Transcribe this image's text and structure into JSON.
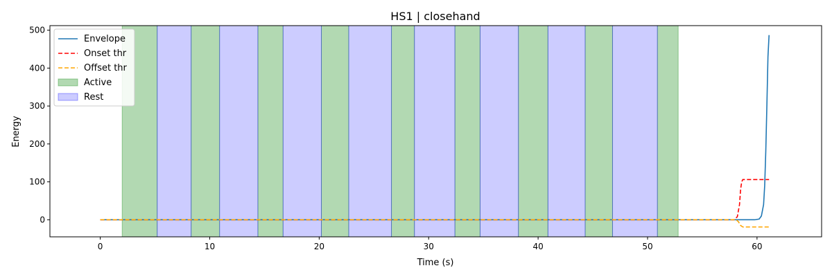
{
  "chart_data": {
    "type": "line",
    "title": "HS1 | closehand",
    "xlabel": "Time (s)",
    "ylabel": "Energy",
    "xlim": [
      -4.6,
      65.9
    ],
    "ylim": [
      -45,
      512
    ],
    "xticks": [
      0,
      10,
      20,
      30,
      40,
      50,
      60
    ],
    "yticks": [
      0,
      100,
      200,
      300,
      400,
      500
    ],
    "grid": false,
    "legend_position": "top-left",
    "active_color": "#008000",
    "rest_color": "#0000ff",
    "active_intervals": [
      [
        2.0,
        5.2
      ],
      [
        8.3,
        10.9
      ],
      [
        14.4,
        16.7
      ],
      [
        20.2,
        22.7
      ],
      [
        26.6,
        28.7
      ],
      [
        32.4,
        34.7
      ],
      [
        38.2,
        40.9
      ],
      [
        44.3,
        46.8
      ],
      [
        50.9,
        52.8
      ]
    ],
    "rest_intervals": [
      [
        5.2,
        8.3
      ],
      [
        10.9,
        14.4
      ],
      [
        16.7,
        20.2
      ],
      [
        22.7,
        26.6
      ],
      [
        28.7,
        32.4
      ],
      [
        34.7,
        38.2
      ],
      [
        40.9,
        44.3
      ],
      [
        46.8,
        50.9
      ]
    ],
    "series": [
      {
        "name": "Envelope",
        "color": "#1f77b4",
        "dash": "solid",
        "x": [
          0,
          58.0,
          59.8,
          60.2,
          60.4,
          60.6,
          60.7,
          60.8,
          60.9,
          61.0,
          61.1
        ],
        "y": [
          0,
          0,
          0,
          2,
          10,
          40,
          90,
          180,
          300,
          430,
          487
        ]
      },
      {
        "name": "Onset thr",
        "color": "#ff0000",
        "dash": "dashed",
        "x": [
          0,
          57.9,
          58.2,
          58.4,
          58.5,
          58.6,
          58.7,
          61.1
        ],
        "y": [
          0,
          0,
          8,
          40,
          80,
          100,
          106,
          106
        ]
      },
      {
        "name": "Offset thr",
        "color": "#ffa500",
        "dash": "dashed",
        "x": [
          0,
          58.1,
          58.3,
          58.5,
          58.7,
          61.1
        ],
        "y": [
          0,
          0,
          -5,
          -15,
          -19,
          -19
        ]
      }
    ],
    "legend": [
      {
        "label": "Envelope",
        "kind": "line",
        "color": "#1f77b4",
        "dash": "solid"
      },
      {
        "label": "Onset thr",
        "kind": "line",
        "color": "#ff0000",
        "dash": "dashed"
      },
      {
        "label": "Offset thr",
        "kind": "line",
        "color": "#ffa500",
        "dash": "dashed"
      },
      {
        "label": "Active",
        "kind": "patch",
        "color": "#008000"
      },
      {
        "label": "Rest",
        "kind": "patch",
        "color": "#0000ff"
      }
    ]
  }
}
